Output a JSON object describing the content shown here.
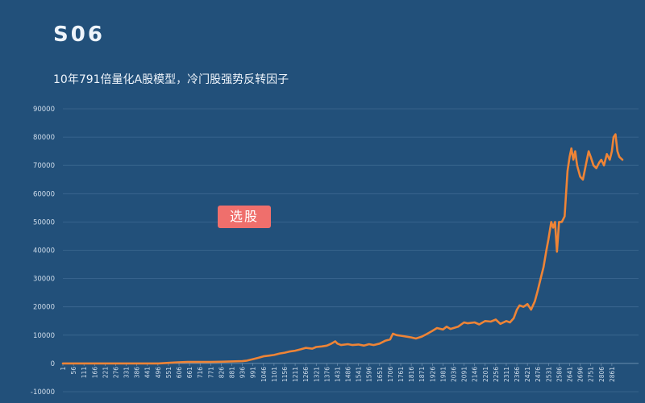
{
  "header": {
    "title": "S06",
    "subtitle": "10年791倍量化A股模型，冷门股强势反转因子"
  },
  "badge": {
    "label": "选股",
    "color": "#ef6f6c"
  },
  "colors": {
    "background": "#22507a",
    "grid": "#3d6991",
    "line": "#ee8436",
    "text": "#cfdcea"
  },
  "chart_data": {
    "type": "line",
    "title": "S06",
    "subtitle": "10年791倍量化A股模型，冷门股强势反转因子",
    "xlabel": "",
    "ylabel": "",
    "ylim": [
      -10000,
      90000
    ],
    "xlim": [
      1,
      2916
    ],
    "grid": true,
    "legend": "none",
    "yticks": [
      "-10000",
      "0",
      "10000",
      "20000",
      "30000",
      "40000",
      "50000",
      "60000",
      "70000",
      "80000",
      "90000"
    ],
    "xticks": [
      "1",
      "56",
      "111",
      "166",
      "221",
      "276",
      "331",
      "386",
      "441",
      "496",
      "551",
      "606",
      "661",
      "716",
      "771",
      "826",
      "881",
      "936",
      "991",
      "1046",
      "1101",
      "1156",
      "1211",
      "1266",
      "1321",
      "1376",
      "1431",
      "1486",
      "1541",
      "1596",
      "1651",
      "1706",
      "1761",
      "1816",
      "1871",
      "1926",
      "1981",
      "2036",
      "2091",
      "2146",
      "2201",
      "2256",
      "2311",
      "2366",
      "2421",
      "2476",
      "2531",
      "2586",
      "2641",
      "2696",
      "2751",
      "2806",
      "2861"
    ],
    "series": [
      {
        "color": "#ee8436",
        "x": [
          1,
          150,
          300,
          450,
          500,
          551,
          600,
          650,
          700,
          771,
          826,
          881,
          936,
          960,
          991,
          1020,
          1046,
          1080,
          1101,
          1130,
          1156,
          1180,
          1211,
          1240,
          1266,
          1300,
          1321,
          1350,
          1376,
          1400,
          1420,
          1431,
          1450,
          1486,
          1510,
          1541,
          1570,
          1596,
          1620,
          1651,
          1680,
          1706,
          1720,
          1740,
          1761,
          1790,
          1816,
          1840,
          1871,
          1900,
          1926,
          1950,
          1981,
          2000,
          2020,
          2036,
          2060,
          2091,
          2110,
          2146,
          2170,
          2201,
          2230,
          2256,
          2280,
          2311,
          2330,
          2350,
          2366,
          2380,
          2400,
          2421,
          2440,
          2460,
          2476,
          2490,
          2505,
          2520,
          2531,
          2545,
          2555,
          2565,
          2575,
          2586,
          2600,
          2615,
          2630,
          2641,
          2650,
          2660,
          2670,
          2680,
          2696,
          2710,
          2725,
          2740,
          2751,
          2765,
          2780,
          2795,
          2806,
          2820,
          2835,
          2850,
          2861,
          2870,
          2880,
          2890,
          2900,
          2916
        ],
        "y": [
          0,
          0,
          0,
          0,
          0,
          200,
          400,
          500,
          500,
          500,
          600,
          700,
          800,
          1000,
          1500,
          2000,
          2500,
          2800,
          3000,
          3500,
          3800,
          4200,
          4500,
          5000,
          5500,
          5200,
          5800,
          6000,
          6300,
          7000,
          7800,
          7000,
          6500,
          6800,
          6500,
          6700,
          6300,
          6800,
          6500,
          7000,
          8000,
          8500,
          10500,
          10000,
          9800,
          9500,
          9200,
          8800,
          9500,
          10500,
          11500,
          12500,
          12000,
          13000,
          12200,
          12500,
          13000,
          14500,
          14200,
          14500,
          13800,
          15000,
          14800,
          15500,
          14000,
          15000,
          14500,
          16000,
          19000,
          20500,
          20000,
          21000,
          19000,
          22000,
          26000,
          30000,
          34000,
          40000,
          44000,
          50000,
          48000,
          50000,
          39500,
          50000,
          50000,
          52000,
          68000,
          73000,
          76000,
          72000,
          75000,
          70000,
          66000,
          65000,
          70000,
          75000,
          73000,
          70000,
          69000,
          71000,
          72000,
          70000,
          74000,
          72000,
          75000,
          80000,
          81000,
          75000,
          73000,
          72000
        ]
      }
    ]
  }
}
